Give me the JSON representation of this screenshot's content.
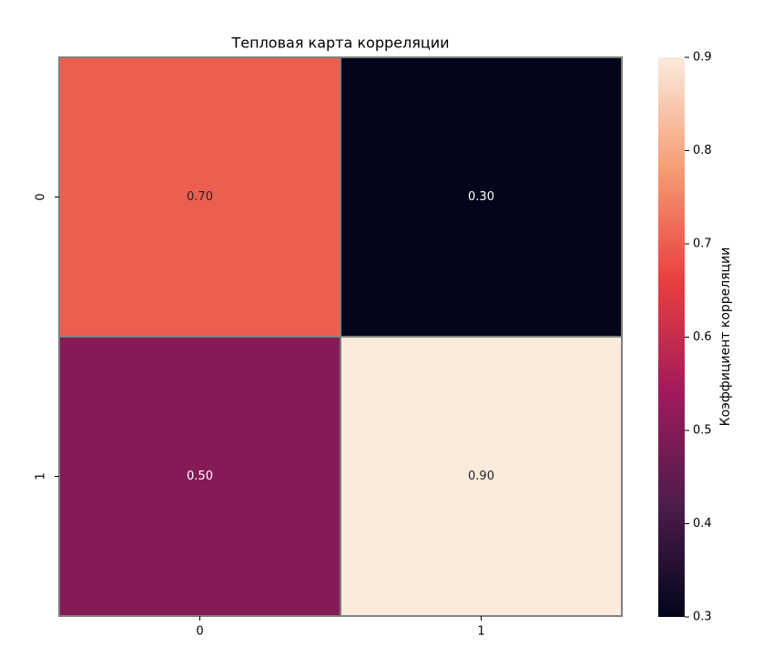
{
  "chart_data": {
    "type": "heatmap",
    "title": "Тепловая карта корреляции",
    "x_categories": [
      "0",
      "1"
    ],
    "y_categories": [
      "0",
      "1"
    ],
    "values": [
      [
        0.7,
        0.3
      ],
      [
        0.5,
        0.9
      ]
    ],
    "value_labels": [
      [
        "0.70",
        "0.30"
      ],
      [
        "0.50",
        "0.90"
      ]
    ],
    "colorbar_label": "Коэффициент корреляции",
    "zlim": [
      0.3,
      0.9
    ],
    "zticks": [
      0.3,
      0.4,
      0.5,
      0.6,
      0.7,
      0.8,
      0.9
    ],
    "colormap": [
      "#03051a",
      "#4c1d4b",
      "#a11a5b",
      "#e83f3f",
      "#f69c73",
      "#faebdd"
    ],
    "cell_border_color": "#808080"
  }
}
